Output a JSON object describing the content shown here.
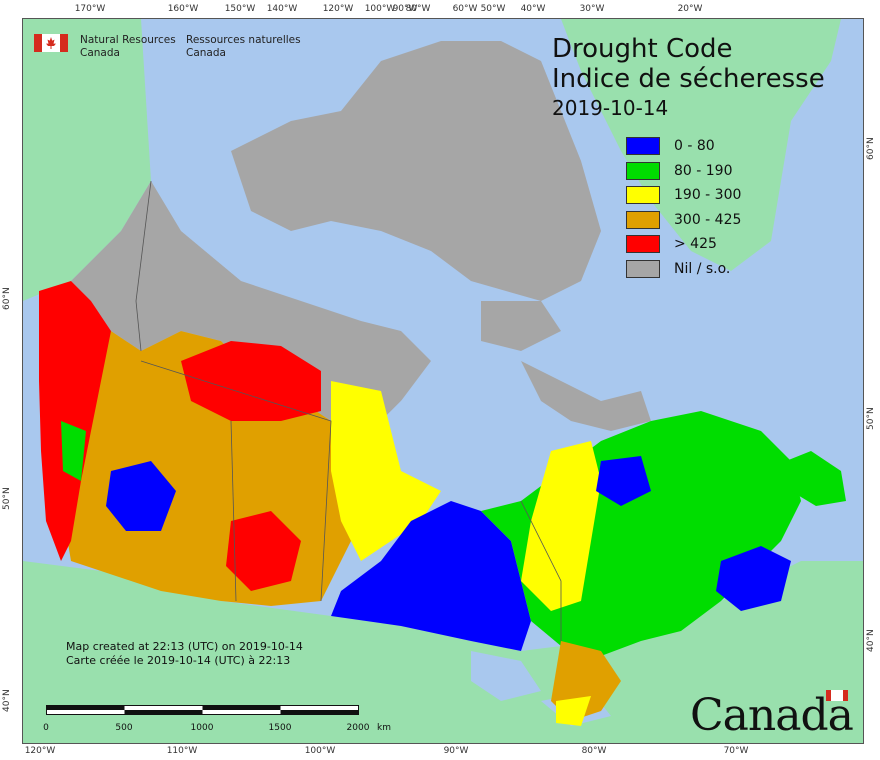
{
  "agency": {
    "name_en": [
      "Natural Resources",
      "Canada"
    ],
    "name_fr": [
      "Ressources naturelles",
      "Canada"
    ]
  },
  "title": {
    "en": "Drought Code",
    "fr": "Indice de sécheresse",
    "date": "2019-10-14"
  },
  "legend": [
    {
      "label": "0 - 80",
      "color": "#0000ff"
    },
    {
      "label": "80 - 190",
      "color": "#00dd00"
    },
    {
      "label": "190 - 300",
      "color": "#ffff00"
    },
    {
      "label": "300 - 425",
      "color": "#e0a000"
    },
    {
      "label": "> 425",
      "color": "#ff0000"
    },
    {
      "label": "Nil / s.o.",
      "color": "#a6a6a6"
    }
  ],
  "colors": {
    "water": "#a9c8ee",
    "foreign_land": "#99e0ad",
    "nodata": "#a6a6a6"
  },
  "credits": {
    "line_en": "Map created at 22:13 (UTC) on 2019-10-14",
    "line_fr": "Carte créée le 2019-10-14 (UTC) à 22:13"
  },
  "scale_bar": {
    "labels": [
      "0",
      "500",
      "1000",
      "1500",
      "2000"
    ],
    "unit": "km"
  },
  "graticule": {
    "top": [
      "170°W",
      "160°W",
      "150°W",
      "140°W",
      "120°W",
      "100°W",
      "90°W",
      "80°W",
      "60°W",
      "50°W",
      "40°W",
      "30°W",
      "20°W"
    ],
    "bottom": [
      "120°W",
      "110°W",
      "100°W",
      "90°W",
      "80°W",
      "70°W"
    ],
    "left": [
      "60°N",
      "50°N",
      "40°N"
    ],
    "right": [
      "60°N",
      "50°N",
      "40°N"
    ]
  },
  "wordmark": "Canada"
}
